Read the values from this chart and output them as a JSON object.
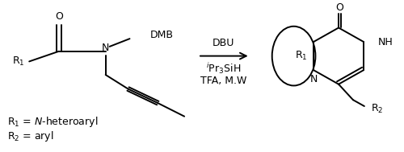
{
  "figsize": [
    5.0,
    1.89
  ],
  "dpi": 100,
  "bg_color": "#ffffff",
  "reagent_line1": "DBU",
  "reagent_line2": "$^{i}$Pr$_3$SiH",
  "reagent_line3": "TFA, M.W",
  "label_r1_eq": "R$_1$ = $N$-heteroaryl",
  "label_r2_eq": "R$_2$ = aryl",
  "font_size": 9,
  "lw": 1.4
}
